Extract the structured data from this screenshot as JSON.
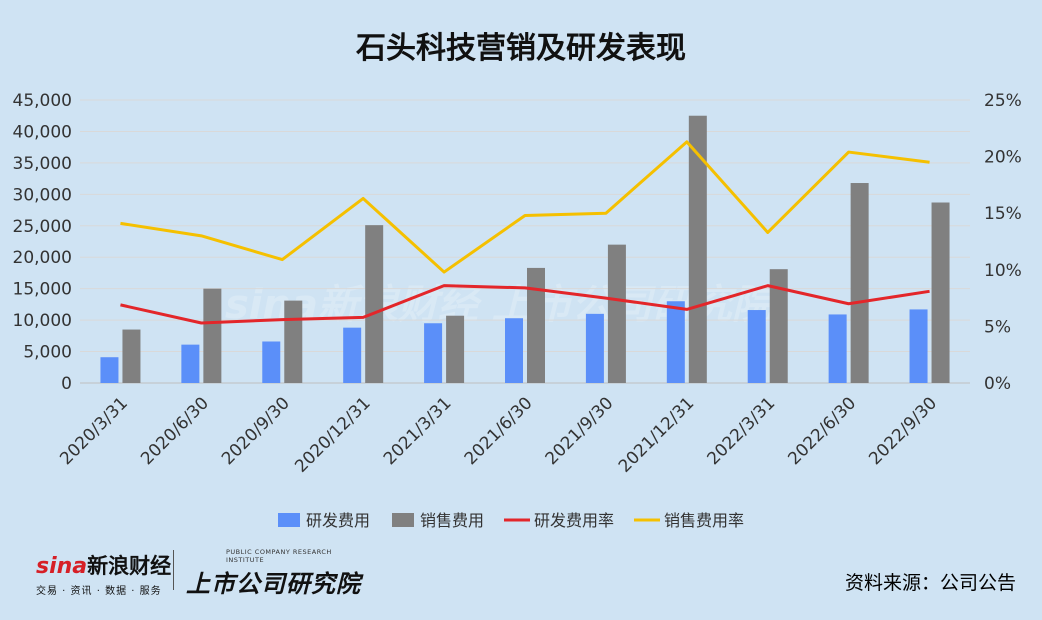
{
  "chart_data": {
    "type": "bar",
    "title": "石头科技营销及研发表现",
    "categories": [
      "2020/3/31",
      "2020/6/30",
      "2020/9/30",
      "2020/12/31",
      "2021/3/31",
      "2021/6/30",
      "2021/9/30",
      "2021/12/31",
      "2022/3/31",
      "2022/6/30",
      "2022/9/30"
    ],
    "series": [
      {
        "name": "研发费用",
        "type": "bar",
        "axis": "left",
        "color": "#5b8ff9",
        "values": [
          4100,
          6100,
          6600,
          8800,
          9500,
          10300,
          11000,
          13000,
          11600,
          10900,
          11700
        ]
      },
      {
        "name": "销售费用",
        "type": "bar",
        "axis": "left",
        "color": "#808080",
        "values": [
          8500,
          15000,
          13100,
          25100,
          10700,
          18300,
          22000,
          42500,
          18100,
          31800,
          28700
        ]
      },
      {
        "name": "研发费用率",
        "type": "line",
        "axis": "right",
        "color": "#e3262a",
        "values": [
          6.9,
          5.3,
          5.6,
          5.8,
          8.6,
          8.4,
          7.5,
          6.5,
          8.6,
          7.0,
          8.1
        ]
      },
      {
        "name": "销售费用率",
        "type": "line",
        "axis": "right",
        "color": "#f5c000",
        "values": [
          14.1,
          13.0,
          10.9,
          16.3,
          9.8,
          14.8,
          15.0,
          21.3,
          13.3,
          20.4,
          19.5
        ]
      }
    ],
    "y_left": {
      "ylim": [
        0,
        45000
      ],
      "ticks": [
        "0",
        "5,000",
        "10,000",
        "15,000",
        "20,000",
        "25,000",
        "30,000",
        "35,000",
        "40,000",
        "45,000"
      ]
    },
    "y_right": {
      "ylim": [
        0,
        25
      ],
      "ticks": [
        "0%",
        "5%",
        "10%",
        "15%",
        "20%",
        "25%"
      ]
    },
    "grid": true,
    "legend_position": "bottom"
  },
  "watermark": {
    "text": "sina新浪财经 上市公司研究院"
  },
  "branding": {
    "sina_word": "sina",
    "sina_cn": "新浪财经",
    "sina_sub": "交易 · 资讯 · 数据 · 服务",
    "institute_en": "PUBLIC COMPANY RESEARCH INSTITUTE",
    "institute_cn": "上市公司研究院"
  },
  "source_note": "资料来源：公司公告"
}
